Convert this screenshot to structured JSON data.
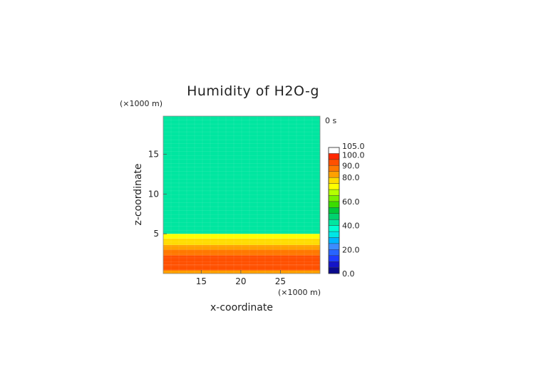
{
  "chart_data": {
    "type": "heatmap",
    "title": "Humidity of H2O-g",
    "xlabel": "x-coordinate",
    "ylabel": "z-coordinate",
    "x_unit": "(×1000 m)",
    "y_unit": "(×1000 m)",
    "time_label": "0 s",
    "xlim": [
      10.2,
      30
    ],
    "ylim": [
      0,
      19.8
    ],
    "x_ticks": [
      15,
      20,
      25
    ],
    "y_ticks": [
      5,
      10,
      15
    ],
    "grid": false,
    "legend": "right",
    "colorbar": {
      "levels": [
        0,
        5,
        10,
        15,
        20,
        25,
        30,
        35,
        40,
        45,
        50,
        55,
        60,
        65,
        70,
        75,
        80,
        85,
        90,
        95,
        100,
        105
      ],
      "colors": [
        "#0a0a8c",
        "#1414c8",
        "#1e3cff",
        "#2864ff",
        "#3c8cff",
        "#00b4ff",
        "#00e6e6",
        "#00ffd2",
        "#00e6a0",
        "#00d26e",
        "#00c83c",
        "#3cdc00",
        "#78f000",
        "#b4ff00",
        "#ffff00",
        "#ffdc00",
        "#ffa000",
        "#ff7800",
        "#ff5000",
        "#ff2800",
        "#ffffff"
      ],
      "tick_labels": [
        "0.0",
        "20.0",
        "40.0",
        "60.0",
        "80.0",
        "90.0",
        "100.0",
        "105.0"
      ],
      "tick_values": [
        0,
        20,
        40,
        60,
        80,
        90,
        100,
        105
      ]
    },
    "profile": [
      {
        "z_from": 0,
        "z_to": 0.4,
        "value": 82
      },
      {
        "z_from": 0.4,
        "z_to": 1.1,
        "value": 90
      },
      {
        "z_from": 1.1,
        "z_to": 2.3,
        "value": 93
      },
      {
        "z_from": 2.3,
        "z_to": 3.0,
        "value": 88
      },
      {
        "z_from": 3.0,
        "z_to": 3.6,
        "value": 84
      },
      {
        "z_from": 3.6,
        "z_to": 4.4,
        "value": 76
      },
      {
        "z_from": 4.4,
        "z_to": 5.0,
        "value": 72
      },
      {
        "z_from": 5.0,
        "z_to": 19.8,
        "value": 42
      }
    ]
  }
}
